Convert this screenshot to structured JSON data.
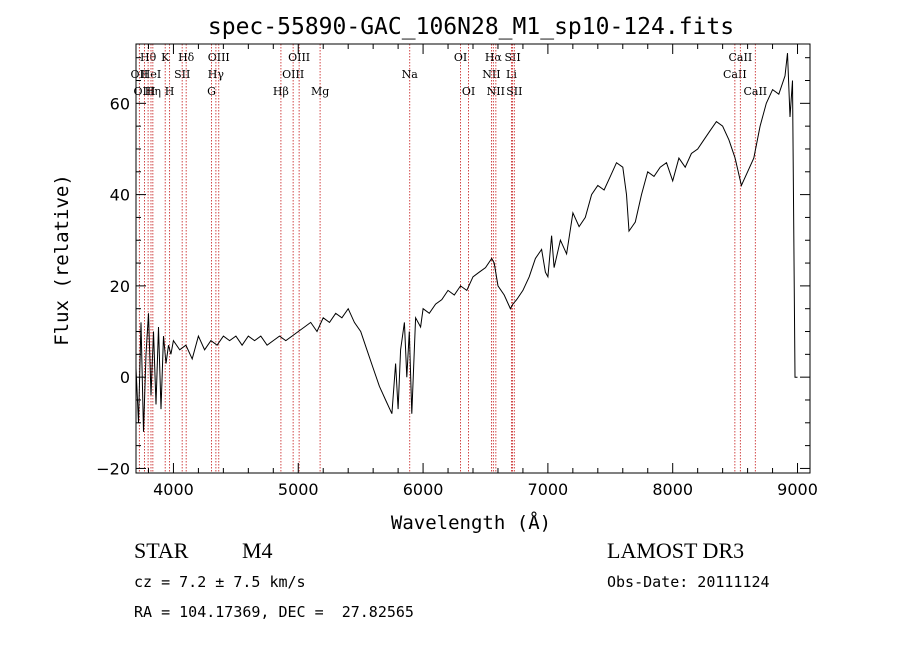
{
  "chart_data": {
    "type": "line",
    "title": "spec-55890-GAC_106N28_M1_sp10-124.fits",
    "xlabel": "Wavelength (Å)",
    "ylabel": "Flux (relative)",
    "xlim": [
      3700,
      9100
    ],
    "ylim": [
      -21,
      73
    ],
    "xticks": [
      4000,
      5000,
      6000,
      7000,
      8000,
      9000
    ],
    "yticks": [
      -20,
      0,
      20,
      40,
      60
    ],
    "series": [
      {
        "name": "spectrum",
        "x": [
          3700,
          3720,
          3740,
          3760,
          3780,
          3800,
          3820,
          3840,
          3860,
          3880,
          3900,
          3920,
          3940,
          3960,
          3980,
          4000,
          4050,
          4100,
          4150,
          4200,
          4250,
          4300,
          4350,
          4400,
          4450,
          4500,
          4550,
          4600,
          4650,
          4700,
          4750,
          4800,
          4850,
          4900,
          4950,
          5000,
          5050,
          5100,
          5150,
          5200,
          5250,
          5300,
          5350,
          5400,
          5450,
          5500,
          5550,
          5600,
          5650,
          5700,
          5750,
          5780,
          5800,
          5820,
          5850,
          5870,
          5890,
          5910,
          5940,
          5980,
          6000,
          6050,
          6100,
          6150,
          6200,
          6250,
          6300,
          6350,
          6400,
          6450,
          6500,
          6550,
          6570,
          6600,
          6650,
          6700,
          6720,
          6750,
          6800,
          6850,
          6900,
          6950,
          6980,
          7000,
          7030,
          7050,
          7100,
          7150,
          7200,
          7250,
          7300,
          7350,
          7400,
          7450,
          7500,
          7550,
          7600,
          7630,
          7650,
          7700,
          7750,
          7800,
          7850,
          7900,
          7950,
          8000,
          8050,
          8100,
          8150,
          8200,
          8250,
          8300,
          8350,
          8400,
          8450,
          8500,
          8550,
          8600,
          8650,
          8700,
          8750,
          8800,
          8850,
          8900,
          8920,
          8940,
          8960,
          8980,
          9000
        ],
        "y": [
          2,
          -10,
          12,
          -12,
          5,
          14,
          -4,
          10,
          -6,
          11,
          -7,
          9,
          3,
          7,
          5,
          8,
          6,
          7,
          4,
          9,
          6,
          8,
          7,
          9,
          8,
          9,
          7,
          9,
          8,
          9,
          7,
          8,
          9,
          8,
          9,
          10,
          11,
          12,
          10,
          13,
          12,
          14,
          13,
          15,
          12,
          10,
          6,
          2,
          -2,
          -5,
          -8,
          3,
          -7,
          6,
          12,
          0,
          10,
          -8,
          13,
          11,
          15,
          14,
          16,
          17,
          19,
          18,
          20,
          19,
          22,
          23,
          24,
          26,
          25,
          20,
          18,
          15,
          16,
          17,
          19,
          22,
          26,
          28,
          23,
          22,
          31,
          24,
          30,
          27,
          36,
          33,
          35,
          40,
          42,
          41,
          44,
          47,
          46,
          40,
          32,
          34,
          40,
          45,
          44,
          46,
          47,
          43,
          48,
          46,
          49,
          50,
          52,
          54,
          56,
          55,
          52,
          48,
          42,
          45,
          48,
          55,
          60,
          63,
          62,
          66,
          71,
          57,
          65,
          0,
          0
        ]
      }
    ],
    "lines": [
      {
        "name": "Hθ",
        "x": 3797,
        "row": 1
      },
      {
        "name": "OII",
        "x": 3727,
        "row": 2
      },
      {
        "name": "OIII",
        "x": 3768,
        "row": 3
      },
      {
        "name": "HeI",
        "x": 3820,
        "row": 2
      },
      {
        "name": "Hη",
        "x": 3835,
        "row": 3
      },
      {
        "name": "K",
        "x": 3934,
        "row": 1
      },
      {
        "name": "H",
        "x": 3969,
        "row": 3
      },
      {
        "name": "SII",
        "x": 4070,
        "row": 2
      },
      {
        "name": "Hδ",
        "x": 4102,
        "row": 1
      },
      {
        "name": "OIII",
        "x": 4363,
        "row": 1
      },
      {
        "name": "Hγ",
        "x": 4340,
        "row": 2
      },
      {
        "name": "G",
        "x": 4305,
        "row": 3
      },
      {
        "name": "Hβ",
        "x": 4861,
        "row": 3
      },
      {
        "name": "OIII",
        "x": 4959,
        "row": 2
      },
      {
        "name": "OIII",
        "x": 5007,
        "row": 1
      },
      {
        "name": "Mg",
        "x": 5175,
        "row": 3
      },
      {
        "name": "Na",
        "x": 5893,
        "row": 2
      },
      {
        "name": "OI",
        "x": 6300,
        "row": 1
      },
      {
        "name": "OI",
        "x": 6364,
        "row": 3
      },
      {
        "name": "NII",
        "x": 6548,
        "row": 2
      },
      {
        "name": "Hα",
        "x": 6563,
        "row": 1
      },
      {
        "name": "NII",
        "x": 6583,
        "row": 3
      },
      {
        "name": "Li",
        "x": 6708,
        "row": 2
      },
      {
        "name": "SII",
        "x": 6717,
        "row": 1
      },
      {
        "name": "SII",
        "x": 6731,
        "row": 3
      },
      {
        "name": "CaII",
        "x": 8498,
        "row": 2
      },
      {
        "name": "CaII",
        "x": 8542,
        "row": 1
      },
      {
        "name": "CaII",
        "x": 8662,
        "row": 3
      }
    ]
  },
  "info": {
    "class": "STAR",
    "subclass": "M4",
    "survey": "LAMOST DR3",
    "redshift": "cz = 7.2 ± 7.5 km/s",
    "obs_date": "Obs-Date: 20111124",
    "coords": "RA = 104.17369, DEC =  27.82565"
  },
  "colors": {
    "line_marker": "#cc3333",
    "spectrum": "#000000",
    "axis": "#000000"
  }
}
